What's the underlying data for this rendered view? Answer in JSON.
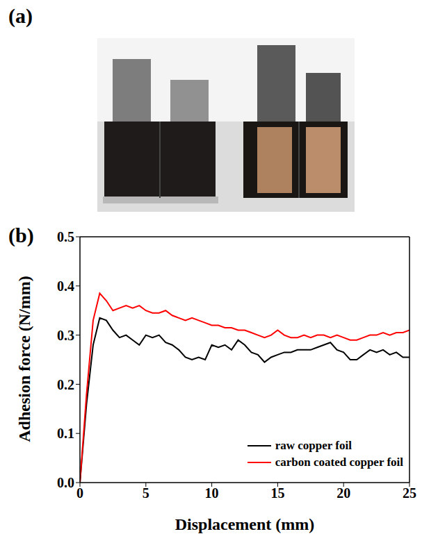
{
  "figure": {
    "panels": [
      "(a)",
      "(b)"
    ]
  },
  "chart_data": {
    "type": "line",
    "x_label": "Displacement (mm)",
    "y_label": "Adhesion force (N/mm)",
    "x": [
      0,
      0.5,
      1,
      1.5,
      2,
      2.5,
      3,
      3.5,
      4,
      4.5,
      5,
      5.5,
      6,
      6.5,
      7,
      7.5,
      8,
      8.5,
      9,
      9.5,
      10,
      10.5,
      11,
      11.5,
      12,
      12.5,
      13,
      13.5,
      14,
      14.5,
      15,
      15.5,
      16,
      16.5,
      17,
      17.5,
      18,
      18.5,
      19,
      19.5,
      20,
      20.5,
      21,
      21.5,
      22,
      22.5,
      23,
      23.5,
      24,
      24.5,
      25
    ],
    "series": [
      {
        "name": "raw copper foil",
        "color": "#000000",
        "values": [
          0,
          0.16,
          0.28,
          0.335,
          0.33,
          0.31,
          0.295,
          0.3,
          0.29,
          0.28,
          0.3,
          0.295,
          0.3,
          0.285,
          0.28,
          0.27,
          0.255,
          0.25,
          0.255,
          0.25,
          0.28,
          0.275,
          0.28,
          0.27,
          0.29,
          0.28,
          0.265,
          0.26,
          0.245,
          0.255,
          0.26,
          0.265,
          0.265,
          0.27,
          0.27,
          0.27,
          0.275,
          0.28,
          0.285,
          0.27,
          0.265,
          0.25,
          0.25,
          0.26,
          0.27,
          0.265,
          0.27,
          0.26,
          0.265,
          0.255,
          0.255
        ]
      },
      {
        "name": "carbon coated copper foil",
        "color": "#ff0000",
        "values": [
          0,
          0.18,
          0.33,
          0.385,
          0.37,
          0.35,
          0.355,
          0.36,
          0.355,
          0.36,
          0.35,
          0.345,
          0.345,
          0.35,
          0.34,
          0.335,
          0.33,
          0.335,
          0.33,
          0.325,
          0.32,
          0.32,
          0.315,
          0.315,
          0.31,
          0.31,
          0.305,
          0.3,
          0.295,
          0.3,
          0.31,
          0.3,
          0.295,
          0.295,
          0.3,
          0.295,
          0.3,
          0.3,
          0.295,
          0.3,
          0.295,
          0.29,
          0.29,
          0.295,
          0.3,
          0.3,
          0.305,
          0.3,
          0.305,
          0.305,
          0.31
        ]
      }
    ],
    "xlim": [
      0,
      25
    ],
    "xticks": [
      0,
      5,
      10,
      15,
      20,
      25
    ],
    "ylim": [
      0,
      0.5
    ],
    "yticks": [
      {
        "value": 0,
        "label": "0.0"
      },
      0.1,
      0.2,
      0.3,
      0.4,
      0.5
    ],
    "grid": false,
    "legend": "lower right"
  }
}
